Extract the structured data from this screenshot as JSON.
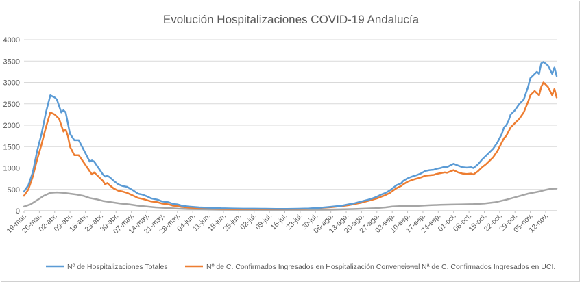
{
  "chart_data": {
    "type": "line",
    "title": "Evolución Hospitalizaciones COVID-19 Andalucía",
    "ylim": [
      0,
      4000
    ],
    "yticks": [
      "0",
      "500",
      "1000",
      "1500",
      "2000",
      "2500",
      "3000",
      "3500",
      "4000"
    ],
    "grid": true,
    "legend_position": "bottom",
    "x_tick_labels": [
      "19-mar.",
      "26-mar.",
      "02-abr.",
      "09-abr.",
      "16-abr.",
      "23-abr.",
      "30-abr.",
      "07-may.",
      "14-may.",
      "21-may.",
      "28-may.",
      "04-jun.",
      "11-jun.",
      "18-jun.",
      "25-jun.",
      "02-jul.",
      "09-jul.",
      "16-jul.",
      "23-jul.",
      "30-jul.",
      "06-ago.",
      "13-ago.",
      "20-ago.",
      "27-ago.",
      "03-sep.",
      "10-sep.",
      "17-sep.",
      "24-sep.",
      "01-oct.",
      "08-oct.",
      "15-oct.",
      "22-oct.",
      "29-oct.",
      "05-nov.",
      "12-nov."
    ],
    "x_tick_days": [
      0,
      7,
      14,
      21,
      28,
      35,
      42,
      49,
      56,
      63,
      70,
      77,
      84,
      91,
      98,
      105,
      112,
      119,
      126,
      133,
      140,
      147,
      154,
      161,
      168,
      175,
      182,
      189,
      196,
      203,
      210,
      217,
      224,
      231,
      238
    ],
    "x_last_day": 243,
    "series": [
      {
        "name": "Nº de Hospitalizaciones Totales",
        "color": "#5B9BD5",
        "points": [
          [
            0,
            450
          ],
          [
            2,
            600
          ],
          [
            4,
            900
          ],
          [
            6,
            1400
          ],
          [
            8,
            1800
          ],
          [
            10,
            2300
          ],
          [
            12,
            2700
          ],
          [
            14,
            2650
          ],
          [
            15,
            2600
          ],
          [
            16,
            2450
          ],
          [
            17,
            2300
          ],
          [
            18,
            2350
          ],
          [
            19,
            2300
          ],
          [
            21,
            1800
          ],
          [
            23,
            1650
          ],
          [
            25,
            1650
          ],
          [
            27,
            1450
          ],
          [
            29,
            1250
          ],
          [
            30,
            1150
          ],
          [
            31,
            1180
          ],
          [
            32,
            1150
          ],
          [
            34,
            1000
          ],
          [
            36,
            850
          ],
          [
            37,
            800
          ],
          [
            38,
            820
          ],
          [
            39,
            790
          ],
          [
            41,
            700
          ],
          [
            43,
            620
          ],
          [
            45,
            580
          ],
          [
            47,
            560
          ],
          [
            50,
            470
          ],
          [
            52,
            400
          ],
          [
            54,
            380
          ],
          [
            56,
            340
          ],
          [
            58,
            290
          ],
          [
            61,
            260
          ],
          [
            63,
            220
          ],
          [
            66,
            200
          ],
          [
            68,
            160
          ],
          [
            70,
            150
          ],
          [
            72,
            120
          ],
          [
            75,
            100
          ],
          [
            80,
            80
          ],
          [
            85,
            70
          ],
          [
            90,
            60
          ],
          [
            95,
            55
          ],
          [
            100,
            50
          ],
          [
            105,
            50
          ],
          [
            110,
            48
          ],
          [
            115,
            45
          ],
          [
            120,
            45
          ],
          [
            125,
            48
          ],
          [
            130,
            55
          ],
          [
            135,
            70
          ],
          [
            140,
            95
          ],
          [
            145,
            120
          ],
          [
            148,
            150
          ],
          [
            151,
            180
          ],
          [
            154,
            220
          ],
          [
            157,
            260
          ],
          [
            159,
            290
          ],
          [
            161,
            330
          ],
          [
            163,
            380
          ],
          [
            165,
            420
          ],
          [
            167,
            480
          ],
          [
            168,
            520
          ],
          [
            170,
            600
          ],
          [
            172,
            640
          ],
          [
            173,
            700
          ],
          [
            175,
            760
          ],
          [
            177,
            800
          ],
          [
            179,
            830
          ],
          [
            181,
            870
          ],
          [
            183,
            930
          ],
          [
            185,
            950
          ],
          [
            187,
            960
          ],
          [
            188,
            980
          ],
          [
            190,
            1000
          ],
          [
            192,
            1030
          ],
          [
            193,
            1020
          ],
          [
            194,
            1050
          ],
          [
            196,
            1100
          ],
          [
            198,
            1060
          ],
          [
            200,
            1020
          ],
          [
            202,
            1010
          ],
          [
            204,
            1020
          ],
          [
            205,
            1000
          ],
          [
            207,
            1080
          ],
          [
            209,
            1200
          ],
          [
            211,
            1300
          ],
          [
            212,
            1350
          ],
          [
            214,
            1450
          ],
          [
            216,
            1600
          ],
          [
            218,
            1800
          ],
          [
            219,
            1950
          ],
          [
            220,
            2000
          ],
          [
            221,
            2100
          ],
          [
            222,
            2250
          ],
          [
            224,
            2350
          ],
          [
            226,
            2500
          ],
          [
            228,
            2600
          ],
          [
            230,
            2900
          ],
          [
            231,
            3100
          ],
          [
            232,
            3150
          ],
          [
            233,
            3200
          ],
          [
            234,
            3250
          ],
          [
            235,
            3200
          ],
          [
            236,
            3450
          ],
          [
            237,
            3480
          ],
          [
            239,
            3400
          ],
          [
            240,
            3300
          ],
          [
            241,
            3200
          ],
          [
            242,
            3350
          ],
          [
            243,
            3150
          ]
        ]
      },
      {
        "name": "Nº de C. Confirmados Ingresados en Hospitalización Convencional",
        "color": "#ED7D31",
        "points": [
          [
            0,
            350
          ],
          [
            2,
            500
          ],
          [
            4,
            800
          ],
          [
            6,
            1200
          ],
          [
            8,
            1550
          ],
          [
            10,
            1950
          ],
          [
            12,
            2300
          ],
          [
            14,
            2250
          ],
          [
            16,
            2150
          ],
          [
            17,
            2000
          ],
          [
            18,
            1850
          ],
          [
            19,
            1900
          ],
          [
            20,
            1750
          ],
          [
            21,
            1500
          ],
          [
            22,
            1400
          ],
          [
            23,
            1300
          ],
          [
            25,
            1300
          ],
          [
            27,
            1150
          ],
          [
            29,
            1000
          ],
          [
            31,
            850
          ],
          [
            32,
            900
          ],
          [
            34,
            800
          ],
          [
            36,
            700
          ],
          [
            37,
            620
          ],
          [
            38,
            650
          ],
          [
            39,
            600
          ],
          [
            41,
            520
          ],
          [
            43,
            470
          ],
          [
            45,
            450
          ],
          [
            47,
            420
          ],
          [
            50,
            350
          ],
          [
            52,
            300
          ],
          [
            54,
            280
          ],
          [
            56,
            250
          ],
          [
            58,
            220
          ],
          [
            61,
            200
          ],
          [
            63,
            170
          ],
          [
            66,
            150
          ],
          [
            68,
            120
          ],
          [
            70,
            110
          ],
          [
            72,
            90
          ],
          [
            75,
            75
          ],
          [
            80,
            60
          ],
          [
            85,
            50
          ],
          [
            90,
            45
          ],
          [
            95,
            40
          ],
          [
            100,
            40
          ],
          [
            105,
            40
          ],
          [
            110,
            38
          ],
          [
            115,
            36
          ],
          [
            120,
            38
          ],
          [
            125,
            42
          ],
          [
            130,
            50
          ],
          [
            135,
            65
          ],
          [
            140,
            85
          ],
          [
            145,
            110
          ],
          [
            148,
            130
          ],
          [
            151,
            160
          ],
          [
            154,
            190
          ],
          [
            157,
            230
          ],
          [
            159,
            260
          ],
          [
            161,
            290
          ],
          [
            163,
            330
          ],
          [
            165,
            370
          ],
          [
            167,
            420
          ],
          [
            168,
            460
          ],
          [
            170,
            530
          ],
          [
            172,
            580
          ],
          [
            173,
            620
          ],
          [
            175,
            680
          ],
          [
            177,
            720
          ],
          [
            179,
            750
          ],
          [
            181,
            780
          ],
          [
            183,
            820
          ],
          [
            185,
            830
          ],
          [
            187,
            840
          ],
          [
            188,
            860
          ],
          [
            190,
            880
          ],
          [
            192,
            900
          ],
          [
            193,
            890
          ],
          [
            194,
            910
          ],
          [
            196,
            950
          ],
          [
            198,
            900
          ],
          [
            200,
            870
          ],
          [
            202,
            860
          ],
          [
            204,
            870
          ],
          [
            205,
            850
          ],
          [
            207,
            920
          ],
          [
            209,
            1020
          ],
          [
            211,
            1100
          ],
          [
            212,
            1150
          ],
          [
            214,
            1250
          ],
          [
            216,
            1400
          ],
          [
            218,
            1600
          ],
          [
            219,
            1700
          ],
          [
            220,
            1750
          ],
          [
            221,
            1850
          ],
          [
            222,
            1950
          ],
          [
            224,
            2050
          ],
          [
            226,
            2150
          ],
          [
            228,
            2300
          ],
          [
            230,
            2550
          ],
          [
            231,
            2700
          ],
          [
            232,
            2750
          ],
          [
            233,
            2800
          ],
          [
            234,
            2750
          ],
          [
            235,
            2700
          ],
          [
            236,
            2900
          ],
          [
            237,
            3000
          ],
          [
            239,
            2900
          ],
          [
            240,
            2800
          ],
          [
            241,
            2700
          ],
          [
            242,
            2850
          ],
          [
            243,
            2650
          ]
        ]
      },
      {
        "name": "Nª de C. Confirmados Ingresados en UCI.",
        "color": "#A5A5A5",
        "points": [
          [
            0,
            100
          ],
          [
            3,
            150
          ],
          [
            6,
            250
          ],
          [
            9,
            350
          ],
          [
            12,
            420
          ],
          [
            15,
            430
          ],
          [
            18,
            420
          ],
          [
            21,
            400
          ],
          [
            24,
            380
          ],
          [
            27,
            350
          ],
          [
            30,
            300
          ],
          [
            33,
            270
          ],
          [
            36,
            230
          ],
          [
            40,
            200
          ],
          [
            44,
            170
          ],
          [
            48,
            150
          ],
          [
            52,
            120
          ],
          [
            56,
            100
          ],
          [
            60,
            80
          ],
          [
            65,
            65
          ],
          [
            70,
            50
          ],
          [
            75,
            40
          ],
          [
            80,
            35
          ],
          [
            90,
            30
          ],
          [
            100,
            28
          ],
          [
            110,
            25
          ],
          [
            120,
            25
          ],
          [
            130,
            28
          ],
          [
            140,
            30
          ],
          [
            150,
            40
          ],
          [
            155,
            50
          ],
          [
            160,
            60
          ],
          [
            165,
            80
          ],
          [
            168,
            100
          ],
          [
            172,
            110
          ],
          [
            176,
            115
          ],
          [
            180,
            115
          ],
          [
            185,
            130
          ],
          [
            190,
            140
          ],
          [
            195,
            145
          ],
          [
            200,
            150
          ],
          [
            205,
            155
          ],
          [
            210,
            170
          ],
          [
            215,
            200
          ],
          [
            220,
            260
          ],
          [
            225,
            330
          ],
          [
            230,
            400
          ],
          [
            235,
            450
          ],
          [
            238,
            490
          ],
          [
            240,
            510
          ],
          [
            242,
            520
          ],
          [
            243,
            520
          ]
        ]
      }
    ]
  }
}
